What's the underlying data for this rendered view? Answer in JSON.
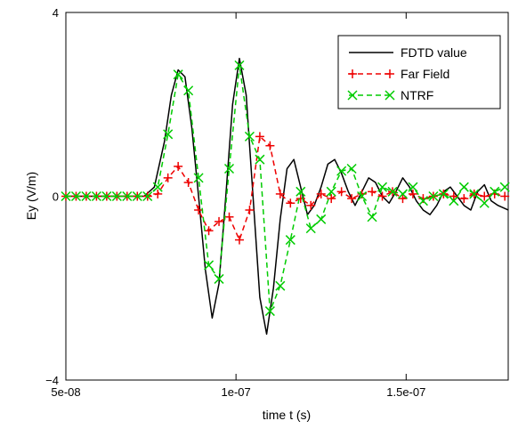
{
  "chart_data": {
    "type": "line",
    "xlabel": "time t (s)",
    "ylabel": "Ey (V/m)",
    "xlim": [
      5e-08,
      1.8e-07
    ],
    "ylim": [
      -4,
      4
    ],
    "x_ticks": [
      5e-08,
      1e-07,
      1.5e-07
    ],
    "x_tick_labels": [
      "5e-08",
      "1e-07",
      "1.5e-07"
    ],
    "y_ticks": [
      -4,
      0,
      4
    ],
    "y_tick_labels": [
      "−4",
      "0",
      "4"
    ],
    "grid": false,
    "legend_position": "top-right",
    "series": [
      {
        "name": "FDTD value",
        "color": "#000000",
        "style": "solid",
        "marker": "none",
        "x": [
          5e-08,
          7.3e-08,
          7.6e-08,
          7.9e-08,
          8.1e-08,
          8.3e-08,
          8.5e-08,
          8.7e-08,
          8.9e-08,
          9.1e-08,
          9.3e-08,
          9.5e-08,
          9.7e-08,
          9.9e-08,
          1.01e-07,
          1.03e-07,
          1.05e-07,
          1.07e-07,
          1.09e-07,
          1.11e-07,
          1.13e-07,
          1.15e-07,
          1.17e-07,
          1.19e-07,
          1.21e-07,
          1.23e-07,
          1.25e-07,
          1.27e-07,
          1.29e-07,
          1.31e-07,
          1.33e-07,
          1.35e-07,
          1.37e-07,
          1.39e-07,
          1.41e-07,
          1.43e-07,
          1.45e-07,
          1.47e-07,
          1.49e-07,
          1.51e-07,
          1.53e-07,
          1.55e-07,
          1.57e-07,
          1.59e-07,
          1.61e-07,
          1.63e-07,
          1.65e-07,
          1.67e-07,
          1.69e-07,
          1.71e-07,
          1.73e-07,
          1.75e-07,
          1.77e-07,
          1.8e-07
        ],
        "y": [
          0,
          0,
          0.2,
          1.2,
          2.2,
          2.75,
          2.6,
          1.5,
          0,
          -1.6,
          -2.65,
          -1.9,
          0,
          2.0,
          3.0,
          2.2,
          0,
          -2.2,
          -3.0,
          -2.0,
          -0.5,
          0.6,
          0.8,
          0.2,
          -0.4,
          -0.2,
          0.2,
          0.7,
          0.8,
          0.5,
          0.1,
          -0.2,
          0.1,
          0.4,
          0.3,
          0.0,
          -0.15,
          0.1,
          0.4,
          0.2,
          -0.1,
          -0.3,
          -0.4,
          -0.2,
          0.1,
          0.2,
          0.0,
          -0.2,
          -0.3,
          0.1,
          0.25,
          -0.1,
          -0.2,
          -0.3
        ]
      },
      {
        "name": "Far Field",
        "color": "#ee0000",
        "style": "dashed",
        "marker": "plus",
        "x": [
          5e-08,
          5.3e-08,
          5.6e-08,
          5.9e-08,
          6.2e-08,
          6.5e-08,
          6.8e-08,
          7.1e-08,
          7.4e-08,
          7.7e-08,
          8e-08,
          8.3e-08,
          8.6e-08,
          8.9e-08,
          9.2e-08,
          9.5e-08,
          9.8e-08,
          1.01e-07,
          1.04e-07,
          1.07e-07,
          1.1e-07,
          1.13e-07,
          1.16e-07,
          1.19e-07,
          1.22e-07,
          1.25e-07,
          1.28e-07,
          1.31e-07,
          1.34e-07,
          1.37e-07,
          1.4e-07,
          1.43e-07,
          1.46e-07,
          1.49e-07,
          1.52e-07,
          1.55e-07,
          1.58e-07,
          1.61e-07,
          1.64e-07,
          1.67e-07,
          1.7e-07,
          1.73e-07,
          1.76e-07,
          1.79e-07
        ],
        "y": [
          0,
          0,
          0,
          0,
          0,
          0,
          0,
          0,
          0,
          0.05,
          0.4,
          0.65,
          0.3,
          -0.3,
          -0.75,
          -0.55,
          -0.45,
          -0.95,
          -0.3,
          1.3,
          1.1,
          0.05,
          -0.15,
          -0.05,
          -0.2,
          0.05,
          -0.05,
          0.1,
          -0.05,
          0.05,
          0.1,
          0.0,
          0.1,
          -0.05,
          0.05,
          -0.05,
          0.0,
          0.05,
          0.0,
          -0.05,
          0.05,
          0.0,
          0.05,
          0.0
        ]
      },
      {
        "name": "NTRF",
        "color": "#00cc00",
        "style": "dashed",
        "marker": "cross",
        "x": [
          5e-08,
          5.3e-08,
          5.6e-08,
          5.9e-08,
          6.2e-08,
          6.5e-08,
          6.8e-08,
          7.1e-08,
          7.4e-08,
          7.7e-08,
          8e-08,
          8.3e-08,
          8.6e-08,
          8.9e-08,
          9.2e-08,
          9.5e-08,
          9.8e-08,
          1.01e-07,
          1.04e-07,
          1.07e-07,
          1.1e-07,
          1.13e-07,
          1.16e-07,
          1.19e-07,
          1.22e-07,
          1.25e-07,
          1.28e-07,
          1.31e-07,
          1.34e-07,
          1.37e-07,
          1.4e-07,
          1.43e-07,
          1.46e-07,
          1.49e-07,
          1.52e-07,
          1.55e-07,
          1.58e-07,
          1.61e-07,
          1.64e-07,
          1.67e-07,
          1.7e-07,
          1.73e-07,
          1.76e-07,
          1.79e-07
        ],
        "y": [
          0,
          0,
          0,
          0,
          0,
          0,
          0,
          0,
          0,
          0.2,
          1.35,
          2.65,
          2.3,
          0.4,
          -1.5,
          -1.8,
          0.6,
          2.85,
          1.3,
          0.8,
          -2.5,
          -1.95,
          -0.95,
          0.1,
          -0.7,
          -0.5,
          0.1,
          0.55,
          0.6,
          0.0,
          -0.45,
          0.2,
          0.1,
          0.05,
          0.2,
          -0.1,
          0.0,
          0.05,
          -0.1,
          0.2,
          0.05,
          -0.15,
          0.1,
          0.2
        ]
      }
    ]
  }
}
